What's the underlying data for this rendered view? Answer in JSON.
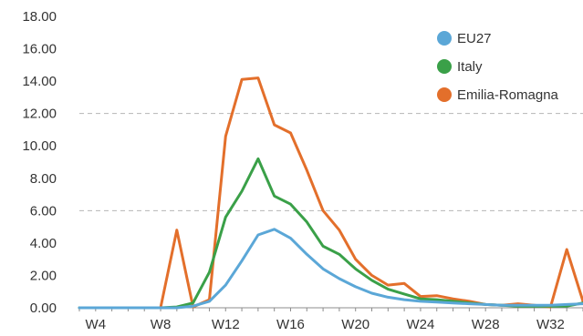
{
  "chart_data": {
    "type": "line",
    "title": "",
    "xlabel": "",
    "ylabel": "",
    "ylim": [
      0,
      18
    ],
    "y_ticks": [
      "0.00",
      "2.00",
      "4.00",
      "6.00",
      "8.00",
      "10.00",
      "12.00",
      "14.00",
      "16.00",
      "18.00"
    ],
    "x_tick_labels": [
      "W4",
      "W8",
      "W12",
      "W16",
      "W20",
      "W24",
      "W28",
      "W32"
    ],
    "x_tick_weeks": [
      4,
      8,
      12,
      16,
      20,
      24,
      28,
      32
    ],
    "x_range": [
      3,
      34
    ],
    "gridlines_dashed": [
      6,
      12
    ],
    "legend_position": "top-right",
    "weeks": [
      3,
      4,
      5,
      6,
      7,
      8,
      9,
      10,
      11,
      12,
      13,
      14,
      15,
      16,
      17,
      18,
      19,
      20,
      21,
      22,
      23,
      24,
      25,
      26,
      27,
      28,
      29,
      30,
      31,
      32,
      33,
      34
    ],
    "series": [
      {
        "name": "EU27",
        "color": "#5ba7d7",
        "values": [
          0,
          0,
          0,
          0,
          0,
          0,
          0,
          0.1,
          0.4,
          1.4,
          2.9,
          4.5,
          4.85,
          4.3,
          3.3,
          2.4,
          1.8,
          1.3,
          0.9,
          0.65,
          0.5,
          0.4,
          0.35,
          0.3,
          0.25,
          0.2,
          0.15,
          0.15,
          0.15,
          0.15,
          0.2,
          0.25
        ]
      },
      {
        "name": "Italy",
        "color": "#3aa048",
        "values": [
          0,
          0,
          0,
          0,
          0,
          0,
          0.05,
          0.3,
          2.2,
          5.6,
          7.2,
          9.2,
          6.9,
          6.4,
          5.3,
          3.8,
          3.3,
          2.4,
          1.7,
          1.15,
          0.85,
          0.55,
          0.5,
          0.4,
          0.3,
          0.2,
          0.15,
          0.1,
          0.1,
          0.1,
          0.1,
          0.3
        ]
      },
      {
        "name": "Emilia-Romagna",
        "color": "#e36f2b",
        "values": [
          0,
          0,
          0,
          0,
          0,
          0,
          4.8,
          0.05,
          0.5,
          10.6,
          14.1,
          14.2,
          11.3,
          10.8,
          8.5,
          6.0,
          4.8,
          3.0,
          2.0,
          1.4,
          1.5,
          0.7,
          0.75,
          0.55,
          0.4,
          0.2,
          0.15,
          0.25,
          0.15,
          0.05,
          3.6,
          0.4
        ]
      }
    ]
  }
}
